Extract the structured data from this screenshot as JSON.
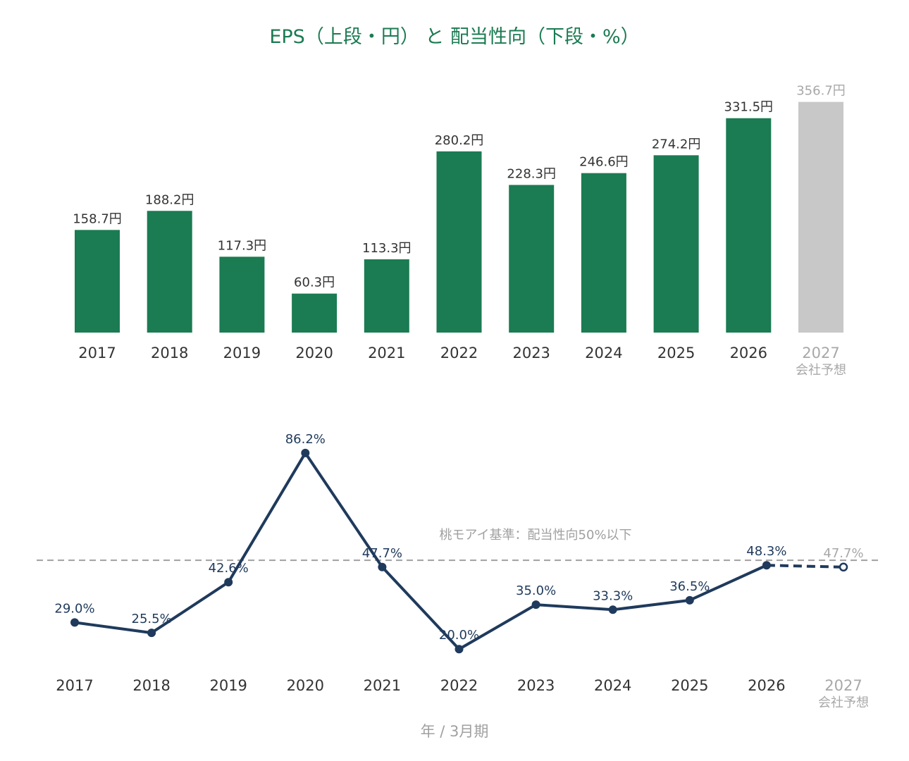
{
  "title": "EPS（上段・円） と 配当性向（下段・%）",
  "x_axis_title": "年 / 3月期",
  "forecast_sublabel": "会社予想",
  "colors": {
    "title": "#1b7b52",
    "bar": "#1b7b52",
    "bar_forecast": "#c8c8c8",
    "line": "#1f3a5c",
    "reference_line": "#a0a0a0",
    "forecast_text": "#a8a8a8"
  },
  "chart_data": [
    {
      "type": "bar",
      "categories": [
        "2017",
        "2018",
        "2019",
        "2020",
        "2021",
        "2022",
        "2023",
        "2024",
        "2025",
        "2026",
        "2027"
      ],
      "values": [
        158.7,
        188.2,
        117.3,
        60.3,
        113.3,
        280.2,
        228.3,
        246.6,
        274.2,
        331.5,
        356.7
      ],
      "data_labels": [
        "158.7円",
        "188.2円",
        "117.3円",
        "60.3円",
        "113.3円",
        "280.2円",
        "228.3円",
        "246.6円",
        "274.2円",
        "331.5円",
        "356.7円"
      ],
      "forecast": [
        false,
        false,
        false,
        false,
        false,
        false,
        false,
        false,
        false,
        false,
        true
      ],
      "unit": "円",
      "ylim": [
        0,
        380
      ]
    },
    {
      "type": "line",
      "categories": [
        "2017",
        "2018",
        "2019",
        "2020",
        "2021",
        "2022",
        "2023",
        "2024",
        "2025",
        "2026",
        "2027"
      ],
      "values": [
        29.0,
        25.5,
        42.6,
        86.2,
        47.7,
        20.0,
        35.0,
        33.3,
        36.5,
        48.3,
        47.7
      ],
      "data_labels": [
        "29.0%",
        "25.5%",
        "42.6%",
        "86.2%",
        "47.7%",
        "20.0%",
        "35.0%",
        "33.3%",
        "36.5%",
        "48.3%",
        "47.7%"
      ],
      "forecast": [
        false,
        false,
        false,
        false,
        false,
        false,
        false,
        false,
        false,
        false,
        true
      ],
      "unit": "%",
      "ylim": [
        0,
        100
      ],
      "reference_line": {
        "value": 50,
        "label": "桃モアイ基準：配当性向50%以下"
      }
    }
  ]
}
